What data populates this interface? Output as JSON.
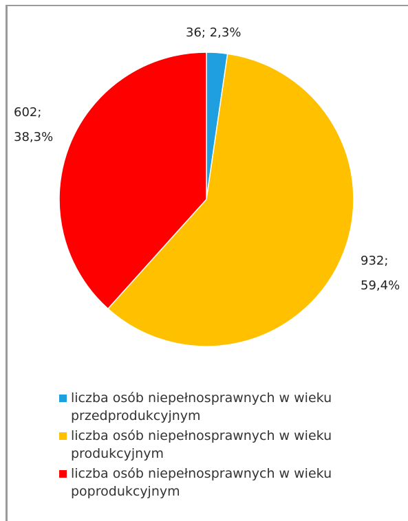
{
  "chart_data": {
    "type": "pie",
    "categories": [
      "liczba osób niepełnosprawnych w wieku przedprodukcyjnym",
      "liczba osób niepełnosprawnych w wieku produkcyjnym",
      "liczba osób niepełnosprawnych w wieku poprodukcyjnym"
    ],
    "values": [
      36,
      932,
      602
    ],
    "value_labels": [
      "36; 2,3%",
      "932; 59,4%",
      "602; 38,3%"
    ],
    "colors": [
      "#1f9fe0",
      "#ffc000",
      "#ff0000"
    ],
    "legend": "bottom"
  }
}
